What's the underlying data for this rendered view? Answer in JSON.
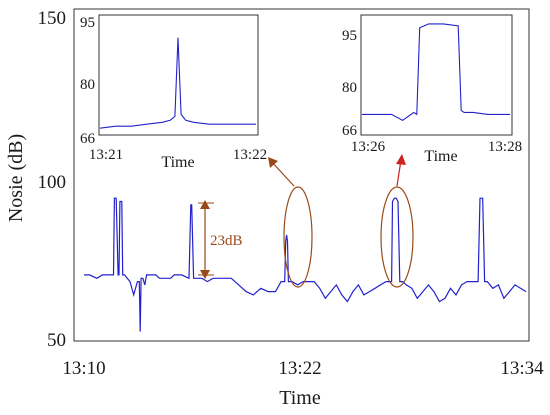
{
  "chart_data": [
    {
      "type": "line",
      "title": "",
      "xlabel": "Time",
      "ylabel": "Nosie (dB)",
      "ylim": [
        45,
        152
      ],
      "yticks": [
        50,
        100,
        150
      ],
      "xticks": [
        "13:10",
        "13:22",
        "13:34"
      ],
      "xrange_minutes": [
        0,
        24
      ],
      "color": "#2222cc",
      "series": [
        {
          "x": [
            0.0,
            0.3,
            0.7,
            1.0,
            1.4,
            1.6,
            1.65,
            1.75,
            1.85,
            1.9,
            1.95,
            2.05,
            2.1,
            2.2,
            2.5,
            2.7,
            2.9,
            3.0,
            3.05,
            3.1,
            3.2,
            3.3,
            3.4,
            3.6,
            3.9,
            4.1,
            4.3,
            4.5,
            4.7,
            4.9,
            5.3,
            5.7,
            5.8,
            5.85,
            5.95,
            6.0,
            6.1,
            6.4,
            6.7,
            7.0,
            7.3,
            7.6,
            8.0,
            8.4,
            8.8,
            9.2,
            9.6,
            10.0,
            10.4,
            10.7,
            10.9,
            10.95,
            11.0,
            11.05,
            11.1,
            11.3,
            11.6,
            11.9,
            12.2,
            12.5,
            12.8,
            13.1,
            13.4,
            13.7,
            14.0,
            14.3,
            14.6,
            14.9,
            15.2,
            15.5,
            15.8,
            16.1,
            16.4,
            16.7,
            16.75,
            16.85,
            16.95,
            17.05,
            17.15,
            17.25,
            17.3,
            17.5,
            17.8,
            18.1,
            18.4,
            18.7,
            19.0,
            19.3,
            19.6,
            19.9,
            20.2,
            20.5,
            20.8,
            21.1,
            21.4,
            21.5,
            21.55,
            21.65,
            21.75,
            21.8,
            21.9,
            22.2,
            22.5,
            22.8,
            23.1,
            23.4,
            23.7,
            24.0
          ],
          "values": [
            72,
            72,
            71,
            72,
            72,
            72,
            95,
            95,
            72,
            72,
            94,
            94,
            72,
            72,
            70,
            66,
            70,
            70,
            55,
            71,
            71,
            69,
            72,
            72,
            72,
            71,
            71,
            71,
            71,
            72,
            72,
            71,
            93,
            93,
            71,
            71,
            71,
            71,
            70,
            71,
            71,
            71,
            71,
            69,
            67,
            66,
            68,
            67,
            67,
            70,
            70,
            82,
            84,
            82,
            70,
            70,
            69,
            70,
            70,
            70,
            68,
            65,
            67,
            69,
            66,
            64,
            67,
            69,
            66,
            67,
            68,
            69,
            70,
            70,
            94,
            95,
            95,
            94,
            70,
            70,
            70,
            69,
            68,
            65,
            67,
            69,
            67,
            64,
            65,
            68,
            66,
            69,
            70,
            70,
            70,
            95,
            95,
            95,
            70,
            70,
            70,
            68,
            69,
            65,
            67,
            69,
            68,
            67
          ]
        }
      ],
      "annotations": [
        {
          "text": "23dB",
          "color": "#9a4a1a"
        }
      ]
    },
    {
      "type": "line",
      "xlabel": "Time",
      "xticks": [
        "13:21",
        "13:22"
      ],
      "yticks": [
        66,
        80,
        95
      ],
      "ylim": [
        65,
        96
      ],
      "xrange_minutes": [
        0,
        1
      ],
      "series": [
        {
          "x": [
            0.0,
            0.1,
            0.2,
            0.3,
            0.4,
            0.45,
            0.48,
            0.5,
            0.52,
            0.55,
            0.6,
            0.7,
            0.8,
            0.9,
            1.0
          ],
          "values": [
            67.5,
            68,
            68,
            68.5,
            69,
            69.5,
            70.5,
            90.5,
            71,
            69.5,
            69,
            68.5,
            68.5,
            68.5,
            68.5
          ]
        }
      ]
    },
    {
      "type": "line",
      "xlabel": "Time",
      "xticks": [
        "13:26",
        "13:28"
      ],
      "yticks": [
        66,
        80,
        95
      ],
      "ylim": [
        65,
        96
      ],
      "xrange_minutes": [
        0,
        2
      ],
      "series": [
        {
          "x": [
            0.0,
            0.2,
            0.4,
            0.55,
            0.7,
            0.74,
            0.78,
            0.9,
            1.1,
            1.3,
            1.34,
            1.38,
            1.5,
            1.7,
            1.85,
            2.0
          ],
          "values": [
            71,
            71,
            71,
            69.5,
            71.5,
            71,
            93,
            94,
            94,
            93.5,
            72,
            71.5,
            71.5,
            71,
            71,
            71
          ]
        }
      ]
    }
  ]
}
